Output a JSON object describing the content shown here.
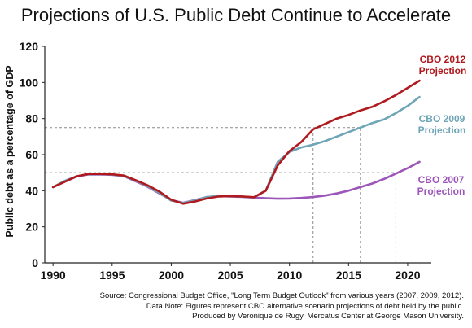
{
  "title": "Projections of U.S. Public Debt Continue to Accelerate",
  "notes": [
    "Source: Congressional Budget Office, \"Long Term Budget Outlook\" from various years (2007, 2009, 2012).",
    "Data Note: Figures represent CBO alternative scenario projections of debt held by the public.",
    "Produced by Veronique de Rugy, Mercatus Center at George Mason University."
  ],
  "chart_data": {
    "type": "line",
    "ylabel": "Public debt as a percentage of GDP",
    "xlabel": "",
    "xlim": [
      1989.3,
      2022
    ],
    "ylim": [
      0,
      120
    ],
    "xticks": [
      1990,
      1995,
      2000,
      2005,
      2010,
      2015,
      2020
    ],
    "yticks": [
      0,
      20,
      40,
      60,
      80,
      100,
      120
    ],
    "grid": false,
    "reference_lines": [
      {
        "x_from": 1989.3,
        "x_to": 2016,
        "y": 75
      },
      {
        "x_from": 1989.3,
        "x_to": 2019,
        "y": 50
      },
      {
        "x": 2012,
        "y_from": 0,
        "y_to": 75
      },
      {
        "x": 2016,
        "y_from": 0,
        "y_to": 75
      },
      {
        "x": 2019,
        "y_from": 0,
        "y_to": 50
      }
    ],
    "series": [
      {
        "name": "CBO 2012 Projection",
        "label_lines": [
          "CBO 2012",
          "Projection"
        ],
        "color": "#b01a1e",
        "points": [
          [
            1990,
            42
          ],
          [
            1991,
            45
          ],
          [
            1992,
            48
          ],
          [
            1993,
            49.3
          ],
          [
            1994,
            49.3
          ],
          [
            1995,
            49.1
          ],
          [
            1996,
            48.4
          ],
          [
            1997,
            45.8
          ],
          [
            1998,
            43
          ],
          [
            1999,
            39.5
          ],
          [
            2000,
            35
          ],
          [
            2001,
            32.8
          ],
          [
            2002,
            34
          ],
          [
            2003,
            35.7
          ],
          [
            2004,
            36.8
          ],
          [
            2005,
            37
          ],
          [
            2006,
            36.8
          ],
          [
            2007,
            36.4
          ],
          [
            2008,
            40
          ],
          [
            2009,
            54
          ],
          [
            2010,
            62
          ],
          [
            2011,
            67
          ],
          [
            2012,
            74
          ],
          [
            2013,
            77
          ],
          [
            2014,
            80
          ],
          [
            2015,
            82
          ],
          [
            2016,
            84.5
          ],
          [
            2017,
            86.5
          ],
          [
            2018,
            89.5
          ],
          [
            2019,
            93
          ],
          [
            2020,
            97
          ],
          [
            2021,
            101
          ]
        ]
      },
      {
        "name": "CBO 2009 Projection",
        "label_lines": [
          "CBO 2009",
          "Projection"
        ],
        "color": "#6ea5b7",
        "points": [
          [
            1990,
            42
          ],
          [
            1991,
            45.5
          ],
          [
            1992,
            48
          ],
          [
            1993,
            49.2
          ],
          [
            1994,
            49.2
          ],
          [
            1995,
            49
          ],
          [
            1996,
            48.2
          ],
          [
            1997,
            45.5
          ],
          [
            1998,
            42.5
          ],
          [
            1999,
            38.8
          ],
          [
            2000,
            34.5
          ],
          [
            2001,
            33.2
          ],
          [
            2002,
            34.5
          ],
          [
            2003,
            36.5
          ],
          [
            2004,
            37
          ],
          [
            2005,
            37
          ],
          [
            2006,
            36.7
          ],
          [
            2007,
            36.3
          ],
          [
            2008,
            40
          ],
          [
            2009,
            56
          ],
          [
            2010,
            61.5
          ],
          [
            2011,
            64
          ],
          [
            2012,
            65.5
          ],
          [
            2013,
            67.5
          ],
          [
            2014,
            70
          ],
          [
            2015,
            72.5
          ],
          [
            2016,
            75
          ],
          [
            2017,
            77.5
          ],
          [
            2018,
            79.5
          ],
          [
            2019,
            83
          ],
          [
            2020,
            87
          ],
          [
            2021,
            92
          ]
        ]
      },
      {
        "name": "CBO 2007 Projection",
        "label_lines": [
          "CBO 2007",
          "Projection"
        ],
        "color": "#9c55b8",
        "points": [
          [
            1990,
            42
          ],
          [
            1991,
            45.2
          ],
          [
            1992,
            47.8
          ],
          [
            1993,
            49
          ],
          [
            1994,
            49
          ],
          [
            1995,
            48.8
          ],
          [
            1996,
            48
          ],
          [
            1997,
            45.2
          ],
          [
            1998,
            42.2
          ],
          [
            1999,
            38.5
          ],
          [
            2000,
            34.8
          ],
          [
            2001,
            33.3
          ],
          [
            2002,
            34.8
          ],
          [
            2003,
            36.5
          ],
          [
            2004,
            37
          ],
          [
            2005,
            36.8
          ],
          [
            2006,
            36.6
          ],
          [
            2007,
            36.2
          ],
          [
            2008,
            35.8
          ],
          [
            2009,
            35.6
          ],
          [
            2010,
            35.7
          ],
          [
            2011,
            36
          ],
          [
            2012,
            36.5
          ],
          [
            2013,
            37.3
          ],
          [
            2014,
            38.5
          ],
          [
            2015,
            40
          ],
          [
            2016,
            42
          ],
          [
            2017,
            44
          ],
          [
            2018,
            46.5
          ],
          [
            2019,
            49.5
          ],
          [
            2020,
            52.5
          ],
          [
            2021,
            56
          ]
        ]
      }
    ]
  }
}
